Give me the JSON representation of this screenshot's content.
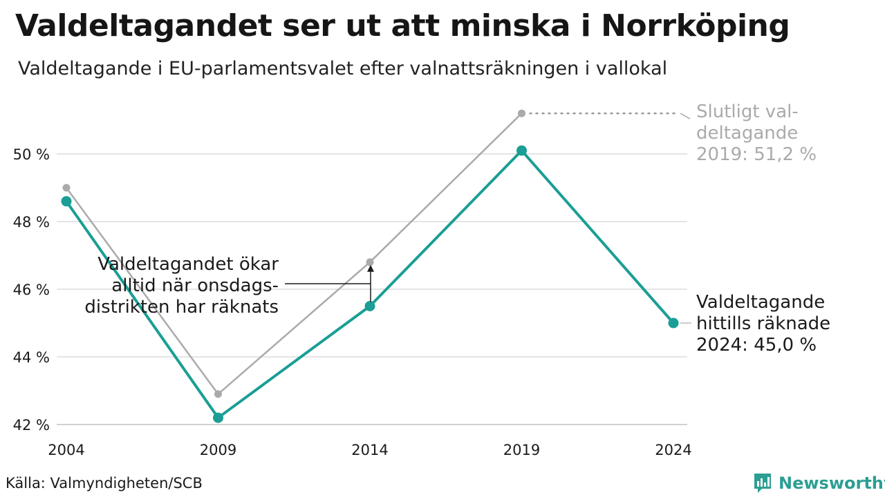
{
  "header": {
    "title": "Valdeltagandet ser ut att minska i Norrköping",
    "subtitle": "Valdeltagande i EU-parlamentsvalet efter valnattsräkningen i vallokal"
  },
  "footer": {
    "source": "Källa: Valmyndigheten/SCB",
    "brand": "Newsworthy",
    "brand_icon": "newsworthy-logo-icon",
    "brand_color": "#2c9e93"
  },
  "chart_data": {
    "type": "line",
    "x": [
      "2004",
      "2009",
      "2014",
      "2019",
      "2024"
    ],
    "ylim": [
      42,
      51.2
    ],
    "yticks": [
      42,
      44,
      46,
      48,
      50
    ],
    "ytick_labels": [
      "42 %",
      "44 %",
      "46 %",
      "48 %",
      "50 %"
    ],
    "grid": true,
    "series": [
      {
        "key": "final",
        "color": "#aaaaaa",
        "values": [
          49.0,
          42.9,
          46.8,
          51.2,
          null
        ]
      },
      {
        "key": "counted",
        "color": "#1a9e95",
        "values": [
          48.6,
          42.2,
          45.5,
          50.1,
          45.0
        ]
      }
    ],
    "annotations": {
      "final_2019": [
        "Slutligt val-",
        "deltagande",
        "2019: 51,2 %"
      ],
      "counted_2024": [
        "Valdeltagande",
        "hittills räknade",
        "2024: 45,0 %"
      ],
      "wednesday_note": [
        "Valdeltagandet ökar",
        "alltid när onsdags-",
        "distrikten har räknats"
      ]
    }
  }
}
